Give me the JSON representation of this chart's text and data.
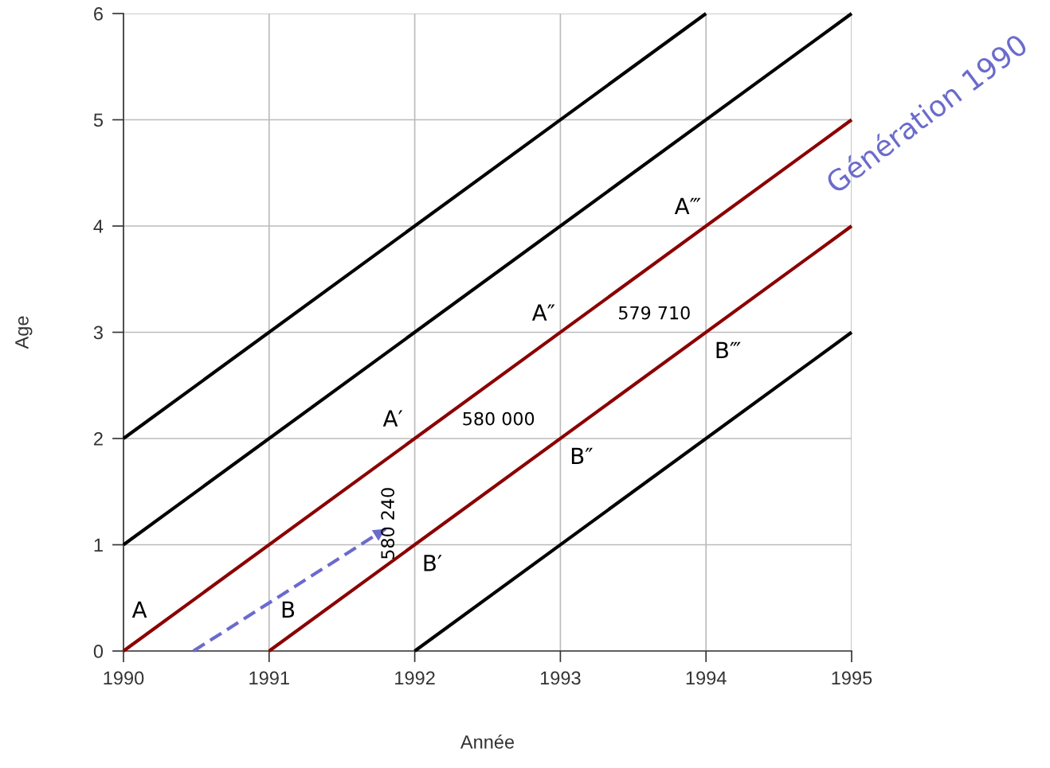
{
  "chart_data": {
    "type": "line",
    "xlabel": "Année",
    "ylabel": "Age",
    "xlim": [
      1990,
      1995
    ],
    "ylim": [
      0,
      6
    ],
    "xticks": [
      1990,
      1991,
      1992,
      1993,
      1994,
      1995
    ],
    "yticks": [
      0,
      1,
      2,
      3,
      4,
      5,
      6
    ],
    "grid": true,
    "legend": false,
    "series": [
      {
        "color": "#000000",
        "x": [
          1990,
          1994
        ],
        "values": [
          2,
          6
        ]
      },
      {
        "color": "#000000",
        "x": [
          1990,
          1995
        ],
        "values": [
          1,
          6
        ]
      },
      {
        "color": "#8b0000",
        "x": [
          1990,
          1995
        ],
        "values": [
          0,
          5
        ]
      },
      {
        "color": "#8b0000",
        "x": [
          1991,
          1995
        ],
        "values": [
          0,
          4
        ]
      },
      {
        "color": "#000000",
        "x": [
          1992,
          1995
        ],
        "values": [
          0,
          3
        ]
      },
      {
        "color": "#6b6bcc",
        "x": [
          1990.48,
          1991.8
        ],
        "values": [
          0,
          1.15
        ],
        "line_style": "dashed"
      }
    ],
    "annotations": [
      "A",
      "B",
      "A′",
      "B′",
      "A″",
      "B″",
      "A‴",
      "B‴",
      "580 240",
      "580 000",
      "579 710",
      "Génération 1990"
    ]
  }
}
